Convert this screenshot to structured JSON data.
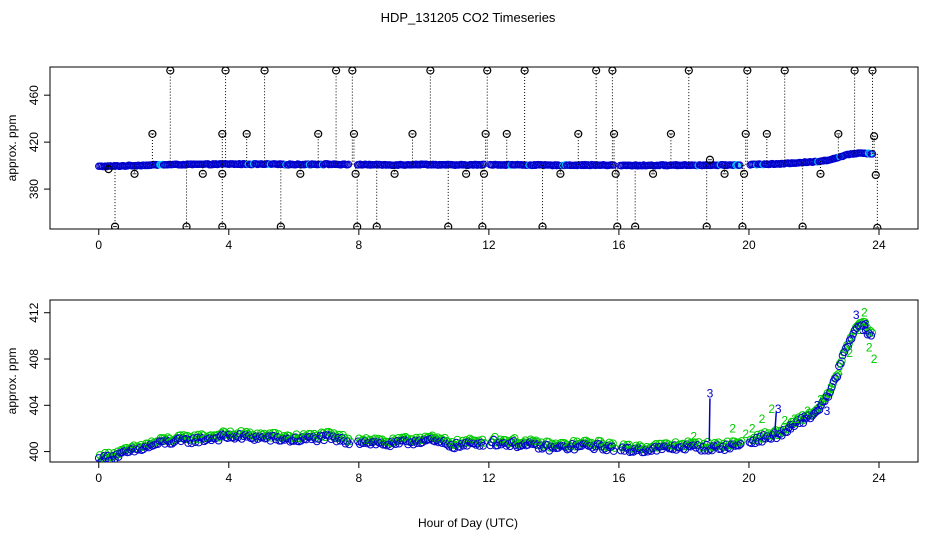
{
  "title": "HDP_131205  CO2 Timeseries",
  "xlabel": "Hour of Day (UTC)",
  "colors": {
    "outlier": "#000000",
    "series_1": "#0000cc",
    "series_1_hi": "#00c8ff",
    "series_2": "#00cc00",
    "series_3": "#0000cc"
  },
  "chart_data": [
    {
      "type": "scatter",
      "panel": "top",
      "ylabel": "approx. ppm",
      "xlim": [
        -1.5,
        25.2
      ],
      "ylim": [
        346,
        484
      ],
      "xticks": [
        0,
        4,
        8,
        12,
        16,
        20,
        24
      ],
      "yticks": [
        380,
        420,
        460
      ],
      "grid": false,
      "series": [
        {
          "marker": "circle",
          "color_ref": "series_1",
          "baseline": [
            [
              0,
              399.3
            ],
            [
              0.5,
              399.6
            ],
            [
              1,
              400.0
            ],
            [
              1.5,
              400.4
            ],
            [
              2,
              400.8
            ],
            [
              3,
              401.0
            ],
            [
              4,
              401.3
            ],
            [
              5,
              401.2
            ],
            [
              6,
              401.0
            ],
            [
              7,
              401.2
            ],
            [
              7.8,
              400.8
            ],
            [
              8,
              400.9
            ],
            [
              9,
              400.6
            ],
            [
              10,
              401.0
            ],
            [
              11,
              400.5
            ],
            [
              12,
              400.8
            ],
            [
              13,
              400.6
            ],
            [
              14,
              400.3
            ],
            [
              15,
              400.5
            ],
            [
              15.9,
              400.3
            ],
            [
              16,
              400.1
            ],
            [
              17,
              400.2
            ],
            [
              18,
              400.4
            ],
            [
              19,
              400.3
            ],
            [
              19.8,
              400.6
            ],
            [
              20.2,
              401.0
            ],
            [
              21,
              401.5
            ],
            [
              21.5,
              402.5
            ],
            [
              22,
              403.2
            ],
            [
              22.5,
              405.0
            ],
            [
              23,
              409.0
            ],
            [
              23.4,
              411.0
            ],
            [
              23.8,
              410.0
            ]
          ]
        },
        {
          "name": "",
          "marker": "circle-outlier",
          "color_ref": "outlier",
          "points": [
            [
              0.5,
              348
            ],
            [
              0.3,
              397
            ],
            [
              1.1,
              393
            ],
            [
              1.65,
              427
            ],
            [
              2.2,
              481
            ],
            [
              2.7,
              348
            ],
            [
              3.2,
              393
            ],
            [
              3.8,
              427
            ],
            [
              3.8,
              393
            ],
            [
              3.8,
              348
            ],
            [
              3.9,
              481
            ],
            [
              4.55,
              427
            ],
            [
              5.1,
              481
            ],
            [
              5.6,
              348
            ],
            [
              6.2,
              393
            ],
            [
              6.75,
              427
            ],
            [
              7.3,
              481
            ],
            [
              7.8,
              481
            ],
            [
              7.85,
              427
            ],
            [
              7.9,
              393
            ],
            [
              7.95,
              348
            ],
            [
              8.55,
              348
            ],
            [
              9.1,
              393
            ],
            [
              9.65,
              427
            ],
            [
              10.2,
              481
            ],
            [
              10.75,
              348
            ],
            [
              11.3,
              393
            ],
            [
              11.8,
              348
            ],
            [
              11.85,
              393
            ],
            [
              11.9,
              427
            ],
            [
              11.95,
              481
            ],
            [
              12.55,
              427
            ],
            [
              13.1,
              481
            ],
            [
              13.65,
              348
            ],
            [
              14.2,
              393
            ],
            [
              14.75,
              427
            ],
            [
              15.3,
              481
            ],
            [
              15.8,
              481
            ],
            [
              15.85,
              427
            ],
            [
              15.9,
              393
            ],
            [
              15.95,
              348
            ],
            [
              16.5,
              348
            ],
            [
              17.05,
              393
            ],
            [
              17.6,
              427
            ],
            [
              18.15,
              481
            ],
            [
              18.7,
              348
            ],
            [
              18.8,
              405
            ],
            [
              19.25,
              393
            ],
            [
              19.8,
              348
            ],
            [
              19.85,
              393
            ],
            [
              19.9,
              427
            ],
            [
              19.95,
              481
            ],
            [
              20.55,
              427
            ],
            [
              21.1,
              481
            ],
            [
              21.65,
              348
            ],
            [
              22.2,
              393
            ],
            [
              22.75,
              427
            ],
            [
              23.25,
              481
            ],
            [
              23.8,
              481
            ],
            [
              23.85,
              425
            ],
            [
              23.9,
              392
            ],
            [
              23.95,
              347
            ]
          ]
        }
      ]
    },
    {
      "type": "scatter",
      "panel": "bottom",
      "ylabel": "approx. ppm",
      "xlim": [
        -1.5,
        25.2
      ],
      "ylim": [
        399.1,
        413.1
      ],
      "xticks": [
        0,
        4,
        8,
        12,
        16,
        20,
        24
      ],
      "yticks": [
        400,
        404,
        408,
        412
      ],
      "grid": false,
      "series": [
        {
          "marker": "circle",
          "color_ref": "series_1",
          "baseline": [
            [
              0,
              399.3
            ],
            [
              0.5,
              399.6
            ],
            [
              1,
              400.0
            ],
            [
              1.5,
              400.4
            ],
            [
              2,
              400.8
            ],
            [
              3,
              401.0
            ],
            [
              4,
              401.3
            ],
            [
              5,
              401.2
            ],
            [
              6,
              401.0
            ],
            [
              7,
              401.2
            ],
            [
              7.8,
              400.8
            ],
            [
              8,
              400.9
            ],
            [
              9,
              400.6
            ],
            [
              10,
              401.0
            ],
            [
              11,
              400.5
            ],
            [
              12,
              400.8
            ],
            [
              13,
              400.6
            ],
            [
              14,
              400.3
            ],
            [
              15,
              400.5
            ],
            [
              15.9,
              400.3
            ],
            [
              16,
              400.1
            ],
            [
              17,
              400.2
            ],
            [
              18,
              400.4
            ],
            [
              19,
              400.3
            ],
            [
              19.8,
              400.6
            ],
            [
              20.2,
              401.0
            ],
            [
              21,
              401.5
            ],
            [
              21.5,
              402.5
            ],
            [
              22,
              403.2
            ],
            [
              22.5,
              405.0
            ],
            [
              23,
              409.0
            ],
            [
              23.4,
              411.0
            ],
            [
              23.8,
              410.0
            ]
          ]
        },
        {
          "marker": "label",
          "label": "2",
          "color_ref": "series_2",
          "points": [
            [
              18.3,
              401.3
            ],
            [
              19.5,
              402.0
            ],
            [
              19.9,
              401.5
            ],
            [
              20.1,
              402.0
            ],
            [
              20.4,
              402.8
            ],
            [
              20.7,
              403.7
            ],
            [
              21.1,
              402.7
            ],
            [
              21.4,
              402.8
            ],
            [
              21.8,
              403.5
            ],
            [
              22.2,
              404.5
            ],
            [
              22.5,
              405.5
            ],
            [
              22.8,
              407.0
            ],
            [
              23.1,
              408.5
            ],
            [
              23.4,
              410.5
            ],
            [
              23.55,
              412.0
            ],
            [
              23.7,
              409.0
            ],
            [
              23.85,
              408.0
            ]
          ]
        },
        {
          "marker": "label",
          "label": "3",
          "color_ref": "series_3",
          "points": [
            [
              18.8,
              405.0
            ],
            [
              20.9,
              403.7
            ],
            [
              21.3,
              402.0
            ],
            [
              21.7,
              403.0
            ],
            [
              22.1,
              404.0
            ],
            [
              22.4,
              403.5
            ],
            [
              23.3,
              411.8
            ],
            [
              23.5,
              410.5
            ],
            [
              23.6,
              411.0
            ]
          ]
        },
        {
          "marker": "line-segments",
          "color_ref": "series_3",
          "segments": [
            [
              [
                18.78,
                400.9
              ],
              [
                18.8,
                404.6
              ]
            ],
            [
              [
                20.8,
                401.8
              ],
              [
                20.84,
                403.4
              ]
            ]
          ]
        }
      ]
    }
  ]
}
